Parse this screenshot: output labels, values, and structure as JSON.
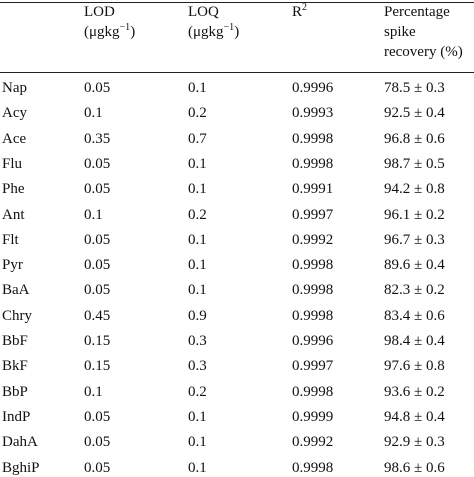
{
  "table": {
    "header": [
      {
        "name": "LOD",
        "unit": "(μgkg",
        "unit_exp": "−1",
        "unit_close": ")"
      },
      {
        "name": "LOQ",
        "unit": "(μgkg",
        "unit_exp": "−1",
        "unit_close": ")"
      },
      {
        "name": "R",
        "exp": "2"
      },
      {
        "lines": [
          "Percentage",
          "spike",
          "recovery (%)"
        ]
      }
    ],
    "rows": [
      [
        "Nap",
        "0.05",
        "0.1",
        "0.9996",
        "78.5 ± 0.3"
      ],
      [
        "Acy",
        "0.1",
        "0.2",
        "0.9993",
        "92.5 ± 0.4"
      ],
      [
        "Ace",
        "0.35",
        "0.7",
        "0.9998",
        "96.8 ± 0.6"
      ],
      [
        "Flu",
        "0.05",
        "0.1",
        "0.9998",
        "98.7 ± 0.5"
      ],
      [
        "Phe",
        "0.05",
        "0.1",
        "0.9991",
        "94.2 ± 0.8"
      ],
      [
        "Ant",
        "0.1",
        "0.2",
        "0.9997",
        "96.1 ± 0.2"
      ],
      [
        "Flt",
        "0.05",
        "0.1",
        "0.9992",
        "96.7 ± 0.3"
      ],
      [
        "Pyr",
        "0.05",
        "0.1",
        "0.9998",
        "89.6 ± 0.4"
      ],
      [
        "BaA",
        "0.05",
        "0.1",
        "0.9998",
        "82.3 ± 0.2"
      ],
      [
        "Chry",
        "0.45",
        "0.9",
        "0.9998",
        "83.4 ± 0.6"
      ],
      [
        "BbF",
        "0.15",
        "0.3",
        "0.9996",
        "98.4 ± 0.4"
      ],
      [
        "BkF",
        "0.15",
        "0.3",
        "0.9997",
        "97.6 ± 0.8"
      ],
      [
        "BbP",
        "0.1",
        "0.2",
        "0.9998",
        "93.6 ± 0.2"
      ],
      [
        "IndP",
        "0.05",
        "0.1",
        "0.9999",
        "94.8 ± 0.4"
      ],
      [
        "DahA",
        "0.05",
        "0.1",
        "0.9992",
        "92.9 ± 0.3"
      ],
      [
        "BghiP",
        "0.05",
        "0.1",
        "0.9998",
        "98.6 ± 0.6"
      ]
    ]
  }
}
